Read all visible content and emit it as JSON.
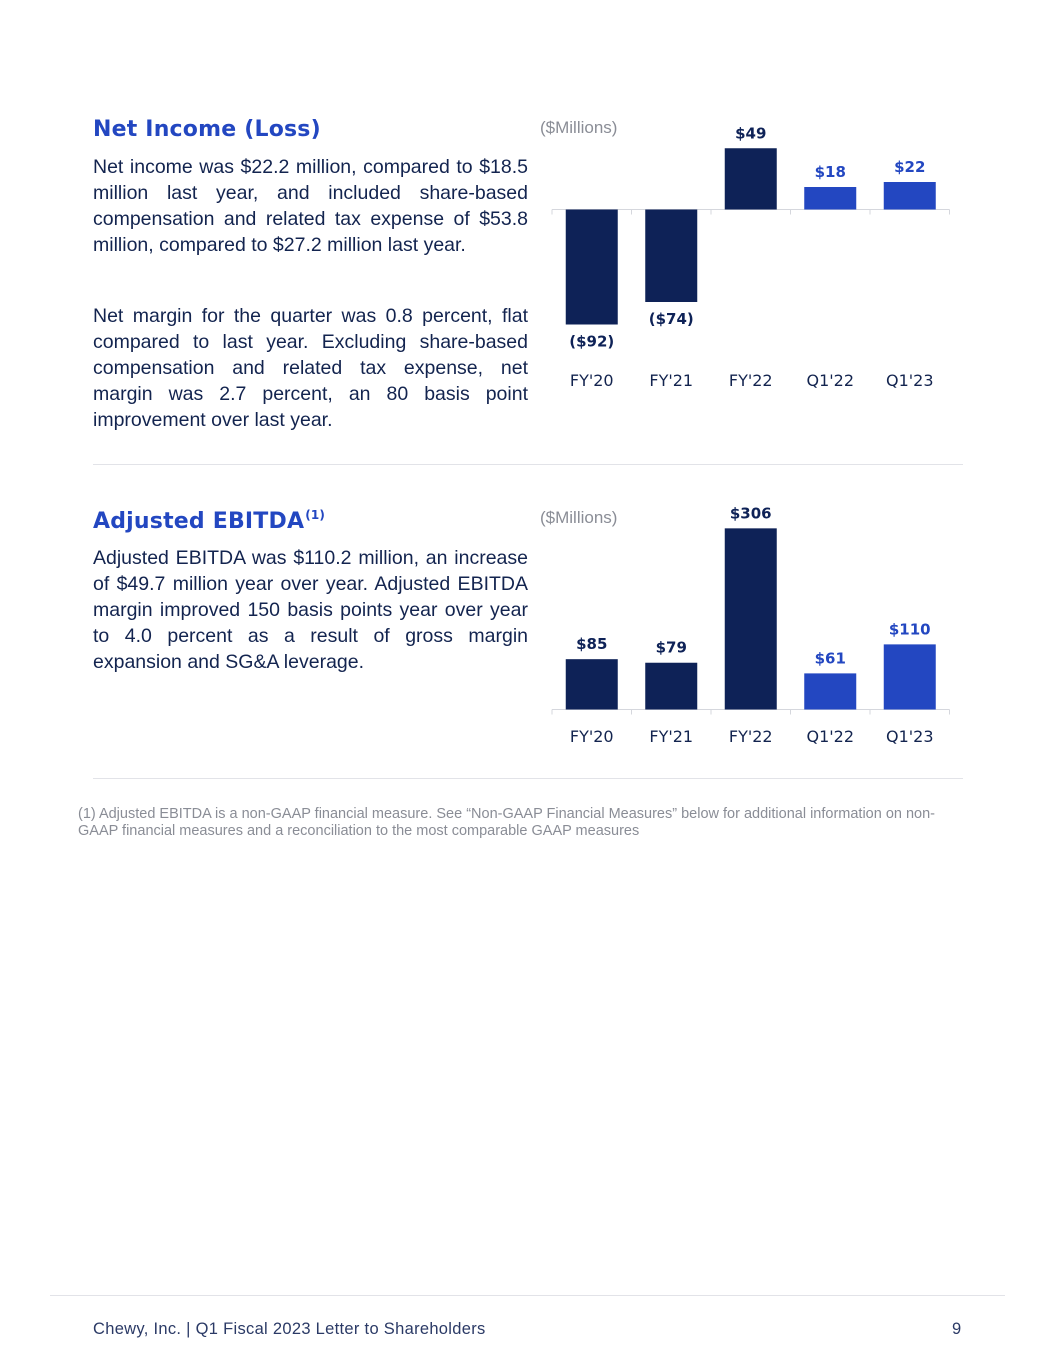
{
  "net_income": {
    "title": "Net Income (Loss)",
    "paragraphs": [
      "Net income was $22.2 million, compared to $18.5 million last year, and included share-based compensation and related tax expense of $53.8 million, compared to $27.2 million last year.",
      "Net margin for the quarter was 0.8 percent, flat compared to last year. Excluding share-based compensation and related tax expense, net margin was 2.7 percent, an 80 basis point improvement over last year."
    ],
    "unit_label": "($Millions)"
  },
  "adjusted_ebitda": {
    "title": "Adjusted EBITDA",
    "title_superscript": "(1)",
    "paragraph": "Adjusted EBITDA was $110.2 million, an increase of $49.7 million year over year. Adjusted  EBITDA margin improved 150 basis points year over year to 4.0 percent as a result of gross margin expansion and SG&A leverage.",
    "unit_label": "($Millions)"
  },
  "footnote": "(1)   Adjusted EBITDA is a non-GAAP financial measure. See “Non-GAAP Financial Measures” below for additional information on non-GAAP financial measures and a reconciliation to the most comparable GAAP measures",
  "footer": {
    "text": "Chewy, Inc.  |  Q1 Fiscal 2023 Letter to Shareholders",
    "page_number": "9"
  },
  "colors": {
    "dark_navy": "#0e2257",
    "bright_blue": "#2347c1",
    "title_blue": "#2347c1",
    "text_navy": "#13244f",
    "gray": "#8a8d96"
  },
  "chart_data": [
    {
      "type": "bar",
      "title": "Net Income (Loss)",
      "unit": "($Millions)",
      "categories": [
        "FY'20",
        "FY'21",
        "FY'22",
        "Q1'22",
        "Q1'23"
      ],
      "values": [
        -92,
        -74,
        49,
        18,
        22
      ],
      "data_labels": [
        "($92)",
        "($74)",
        "$49",
        "$18",
        "$22"
      ],
      "bar_colors": [
        "#0e2257",
        "#0e2257",
        "#0e2257",
        "#2347c1",
        "#2347c1"
      ],
      "ylim": [
        -92,
        49
      ],
      "grid": false,
      "legend": "none"
    },
    {
      "type": "bar",
      "title": "Adjusted EBITDA",
      "unit": "($Millions)",
      "categories": [
        "FY'20",
        "FY'21",
        "FY'22",
        "Q1'22",
        "Q1'23"
      ],
      "values": [
        85,
        79,
        306,
        61,
        110
      ],
      "data_labels": [
        "$85",
        "$79",
        "$306",
        "$61",
        "$110"
      ],
      "bar_colors": [
        "#0e2257",
        "#0e2257",
        "#0e2257",
        "#2347c1",
        "#2347c1"
      ],
      "ylim": [
        0,
        306
      ],
      "grid": false,
      "legend": "none"
    }
  ]
}
